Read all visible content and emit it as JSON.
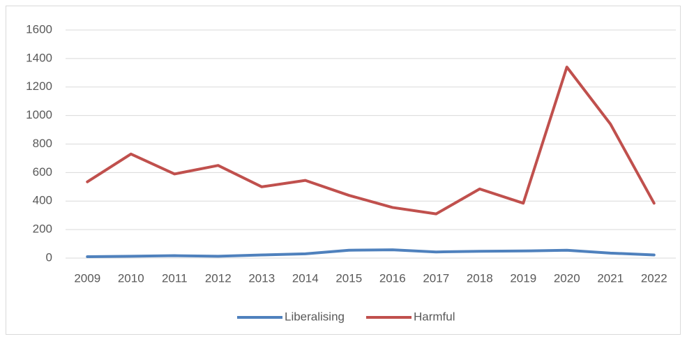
{
  "chart_data": {
    "type": "line",
    "categories": [
      "2009",
      "2010",
      "2011",
      "2012",
      "2013",
      "2014",
      "2015",
      "2016",
      "2017",
      "2018",
      "2019",
      "2020",
      "2021",
      "2022"
    ],
    "series": [
      {
        "name": "Liberalising",
        "color": "#4f81bd",
        "values": [
          10,
          13,
          17,
          13,
          22,
          30,
          55,
          58,
          43,
          48,
          50,
          55,
          35,
          22
        ]
      },
      {
        "name": "Harmful",
        "color": "#c0504d",
        "values": [
          535,
          730,
          590,
          650,
          500,
          545,
          440,
          355,
          310,
          485,
          385,
          1340,
          940,
          385
        ]
      }
    ],
    "ylim": [
      0,
      1600
    ],
    "yticks": [
      0,
      200,
      400,
      600,
      800,
      1000,
      1200,
      1400,
      1600
    ],
    "grid": true,
    "legend": "bottom"
  }
}
